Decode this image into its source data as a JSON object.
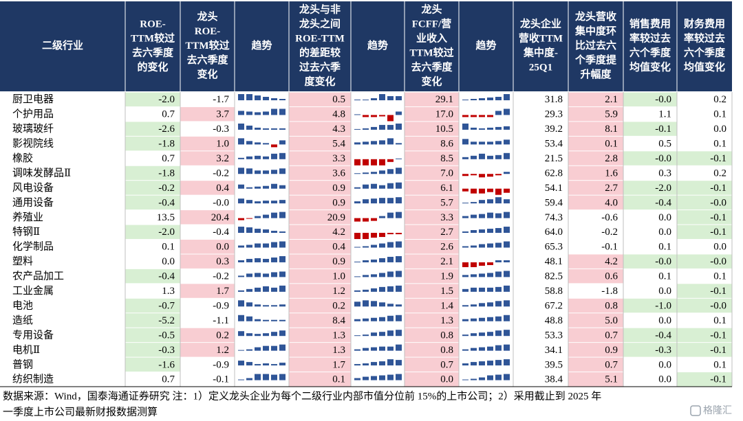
{
  "table": {
    "header": [
      [
        "二级行业"
      ],
      [
        "ROE-",
        "TTM较过",
        "去六季度",
        "的变化"
      ],
      [
        "龙头",
        "ROE-",
        "TTM较过",
        "去六季度",
        "变化"
      ],
      [
        "趋势"
      ],
      [
        "龙头与非",
        "龙头之间",
        "ROE-TTM",
        "的差距较",
        "过去六季",
        "度变化"
      ],
      [
        "趋势"
      ],
      [
        "龙头",
        "FCFF/营",
        "业收入",
        "TTM较过",
        "去六季度",
        "变化"
      ],
      [
        "趋势"
      ],
      [
        "龙头企业",
        "营收TTM",
        "集中度-",
        "25Q1"
      ],
      [
        "龙头营收",
        "集中度环",
        "比过去六",
        "个季度提",
        "升幅度"
      ],
      [
        "销售费用",
        "率较过去",
        "六个季度",
        "均值变化"
      ],
      [
        "财务费用",
        "率较过去",
        "六个季度",
        "均值变化"
      ]
    ],
    "highlight": [
      null,
      "negative",
      "positive",
      null,
      "positive",
      null,
      "positive",
      null,
      null,
      "positive",
      "negative",
      "negative"
    ],
    "colors": {
      "header": "#1f3864",
      "negative": "#d8efd3",
      "positive": "#f8cdd2",
      "bar_up": "#2f5597",
      "bar_down": "#c00000"
    },
    "rows": [
      [
        "厨卫电器",
        "-2.0",
        "-1.7",
        [
          0.9,
          0.9,
          0.7,
          0.5,
          0.3,
          0.2
        ],
        "0.5",
        [
          0.1,
          0.1,
          0.3,
          0.9,
          0.6,
          0.6
        ],
        "29.1",
        [
          0.1,
          0.2,
          0.3,
          0.4,
          0.5,
          0.9
        ],
        "31.8",
        "2.1",
        "-0.0",
        "0.2"
      ],
      [
        "个护用品",
        "0.7",
        "3.7",
        [
          0.6,
          0.5,
          0.4,
          0.5,
          0.9,
          0.9
        ],
        "4.8",
        [
          0.1,
          -0.3,
          -0.3,
          -0.2,
          -0.9,
          0.5
        ],
        "17.0",
        [
          -0.3,
          -0.3,
          -0.3,
          -0.3,
          0.6,
          0.9
        ],
        "29.3",
        "5.9",
        "1.1",
        "0.1"
      ],
      [
        "玻璃玻纤",
        "-2.6",
        "-0.3",
        [
          0.9,
          0.6,
          0.3,
          0.2,
          0.2,
          0.2
        ],
        "4.3",
        [
          0.1,
          0.2,
          0.4,
          0.7,
          0.7,
          0.9
        ],
        "10.5",
        [
          0.9,
          0.3,
          0.2,
          0.3,
          0.4,
          0.5
        ],
        "39.2",
        "8.1",
        "-0.1",
        "0.0"
      ],
      [
        "影视院线",
        "-1.8",
        "1.0",
        [
          0.9,
          0.5,
          0.3,
          0.2,
          -0.4,
          0.6
        ],
        "5.4",
        [
          0.3,
          0.4,
          0.5,
          0.6,
          0.9,
          0.2
        ],
        "8.6",
        [
          0.8,
          0.4,
          0.4,
          0.4,
          0.5,
          0.7
        ],
        "53.4",
        "0.1",
        "0.5",
        "0.1"
      ],
      [
        "橡胶",
        "0.7",
        "3.2",
        [
          0.2,
          0.4,
          0.5,
          0.4,
          0.8,
          0.9
        ],
        "3.3",
        [
          -0.9,
          -0.9,
          -0.9,
          -0.9,
          -0.4,
          0.1
        ],
        "8.5",
        [
          0.3,
          0.5,
          0.8,
          0.5,
          0.6,
          0.9
        ],
        "21.5",
        "2.8",
        "-0.0",
        "-0.1"
      ],
      [
        "调味发酵品Ⅱ",
        "-1.8",
        "-0.2",
        [
          0.9,
          0.8,
          0.5,
          0.5,
          0.6,
          0.8
        ],
        "3.6",
        [
          0.1,
          0.2,
          0.3,
          0.5,
          0.7,
          0.9
        ],
        "7.0",
        [
          -0.3,
          -0.2,
          -0.5,
          -0.4,
          -0.2,
          0.3
        ],
        "62.8",
        "1.6",
        "0.3",
        "0.2"
      ],
      [
        "风电设备",
        "-0.2",
        "0.4",
        [
          0.6,
          0.2,
          0.3,
          0.4,
          0.7,
          0.5
        ],
        "0.9",
        [
          0.2,
          0.6,
          0.7,
          0.5,
          0.8,
          0.9
        ],
        "6.1",
        [
          -0.4,
          -0.7,
          -0.7,
          -0.5,
          -0.9,
          -0.6
        ],
        "54.1",
        "2.7",
        "-2.0",
        "-0.1"
      ],
      [
        "通用设备",
        "-0.4",
        "-0.0",
        [
          0.7,
          0.5,
          0.3,
          0.4,
          0.4,
          0.5
        ],
        "0.9",
        [
          0.3,
          0.6,
          0.7,
          0.8,
          0.8,
          0.9
        ],
        "5.7",
        [
          0.1,
          0.2,
          0.5,
          0.6,
          0.9,
          0.6
        ],
        "59.4",
        "4.0",
        "-0.4",
        "-0.0"
      ],
      [
        "养殖业",
        "13.5",
        "20.4",
        [
          -0.3,
          -0.1,
          0.3,
          0.5,
          0.8,
          0.9
        ],
        "20.9",
        [
          -0.5,
          -0.5,
          -0.4,
          0.3,
          0.8,
          0.9
        ],
        "3.3",
        [
          0.3,
          0.5,
          0.6,
          0.8,
          0.7,
          0.9
        ],
        "74.3",
        "-0.6",
        "0.0",
        "-0.1"
      ],
      [
        "特钢Ⅱ",
        "-2.0",
        "-0.4",
        [
          0.9,
          0.8,
          0.6,
          0.5,
          0.3,
          0.2
        ],
        "4.2",
        [
          -0.9,
          -0.9,
          -0.7,
          -0.6,
          -0.2,
          -0.2
        ],
        "2.7",
        [
          0.2,
          0.4,
          0.5,
          0.6,
          0.7,
          0.9
        ],
        "64.0",
        "-0.2",
        "0.0",
        "-0.1"
      ],
      [
        "化学制品",
        "0.1",
        "0.0",
        [
          0.3,
          0.4,
          0.6,
          0.6,
          0.8,
          0.9
        ],
        "0.4",
        [
          0.1,
          0.2,
          0.4,
          0.6,
          0.8,
          0.9
        ],
        "2.6",
        [
          0.2,
          0.3,
          0.5,
          0.6,
          0.7,
          0.9
        ],
        "65.3",
        "-0.1",
        "0.1",
        "0.0"
      ],
      [
        "塑料",
        "0.0",
        "0.3",
        [
          0.3,
          0.5,
          0.6,
          0.5,
          0.7,
          0.9
        ],
        "0.9",
        [
          0.1,
          0.3,
          0.4,
          0.6,
          0.8,
          0.9
        ],
        "2.1",
        [
          -0.7,
          -0.7,
          -0.5,
          -0.4,
          0.3,
          0.3
        ],
        "48.1",
        "4.2",
        "-0.0",
        "-0.0"
      ],
      [
        "农产品加工",
        "-0.4",
        "-0.2",
        [
          0.2,
          0.5,
          0.6,
          0.5,
          0.7,
          0.8
        ],
        "1.0",
        [
          0.1,
          0.3,
          0.4,
          0.6,
          0.8,
          0.9
        ],
        "1.9",
        [
          0.3,
          0.4,
          0.5,
          0.6,
          0.8,
          0.9
        ],
        "82.5",
        "0.6",
        "0.1",
        "0.1"
      ],
      [
        "工业金属",
        "1.3",
        "1.7",
        [
          0.2,
          0.4,
          0.6,
          0.8,
          0.6,
          0.9
        ],
        "1.2",
        [
          0.2,
          0.3,
          0.5,
          0.7,
          0.8,
          0.9
        ],
        "1.5",
        [
          0.4,
          0.6,
          0.6,
          0.6,
          0.7,
          0.9
        ],
        "58.8",
        "-1.8",
        "0.0",
        "-0.1"
      ],
      [
        "电池",
        "-0.7",
        "-0.9",
        [
          0.9,
          0.6,
          0.3,
          0.2,
          0.2,
          0.3
        ],
        "0.2",
        [
          0.7,
          0.9,
          0.8,
          0.6,
          0.4,
          0.3
        ],
        "1.4",
        [
          0.2,
          0.3,
          0.5,
          0.6,
          0.8,
          0.9
        ],
        "67.2",
        "0.8",
        "-1.0",
        "-0.0"
      ],
      [
        "造纸",
        "-5.2",
        "-1.1",
        [
          0.9,
          0.7,
          0.3,
          0.2,
          0.2,
          0.2
        ],
        "8.4",
        [
          0.3,
          0.4,
          0.5,
          0.6,
          0.8,
          0.9
        ],
        "1.3",
        [
          0.3,
          0.4,
          0.5,
          0.6,
          0.7,
          0.9
        ],
        "48.8",
        "5.0",
        "0.0",
        "0.1"
      ],
      [
        "专用设备",
        "-0.5",
        "0.2",
        [
          0.7,
          0.4,
          0.3,
          0.4,
          0.6,
          0.8
        ],
        "1.3",
        [
          0.1,
          0.2,
          0.5,
          0.6,
          0.8,
          0.9
        ],
        "0.8",
        [
          0.2,
          0.4,
          0.5,
          0.6,
          0.8,
          0.9
        ],
        "53.3",
        "0.7",
        "-0.4",
        "-0.1"
      ],
      [
        "电机Ⅱ",
        "-0.3",
        "1.2",
        [
          0.1,
          0.2,
          0.5,
          0.7,
          0.7,
          0.9
        ],
        "1.3",
        [
          0.2,
          0.4,
          0.5,
          0.6,
          0.6,
          0.9
        ],
        "0.8",
        [
          0.2,
          0.4,
          0.5,
          0.6,
          0.8,
          0.9
        ],
        "34.1",
        "0.9",
        "-0.3",
        "-0.1"
      ],
      [
        "普钢",
        "-1.6",
        "-0.9",
        [
          0.7,
          0.5,
          0.2,
          0.3,
          0.2,
          0.4
        ],
        "1.7",
        [
          0.2,
          0.3,
          0.5,
          0.6,
          0.9,
          0.8
        ],
        "0.7",
        [
          0.3,
          0.5,
          0.6,
          0.7,
          0.8,
          0.9
        ],
        "39.5",
        "0.7",
        "0.0",
        "0.1"
      ],
      [
        "纺织制造",
        "0.7",
        "-0.1",
        [
          0.1,
          0.3,
          0.9,
          0.9,
          0.8,
          0.9
        ],
        "0.1",
        [
          0.3,
          0.5,
          0.6,
          0.7,
          0.8,
          0.9
        ],
        "0.0",
        [
          0.1,
          0.2,
          0.4,
          0.7,
          0.8,
          0.9
        ],
        "38.4",
        "5.1",
        "0.0",
        "-0.1"
      ]
    ]
  },
  "note": [
    "数据来源：Wind，国泰海通证券研究 注：1）定义龙头企业为每个二级行业内部市值分位前 15%的上市公司；2）采用截止到 2025 年",
    "一季度上市公司最新财报数据测算"
  ],
  "watermark": "格隆汇"
}
